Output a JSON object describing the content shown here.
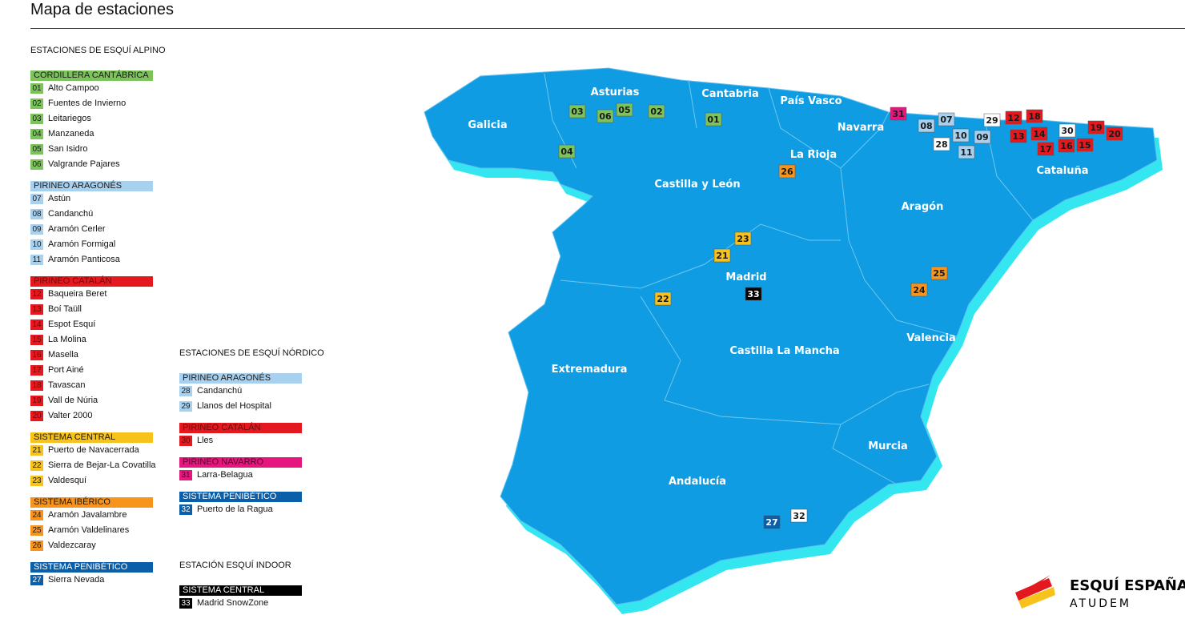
{
  "title": "Mapa de estaciones",
  "legends": [
    {
      "heading": "ESTACIONES DE ESQUÍ ALPINO",
      "groups": [
        {
          "name": "CORDILLERA CANTÁBRICA",
          "color": "#7dc35b",
          "text": "#1a1a1a",
          "items": [
            {
              "num": "01",
              "name": "Alto Campoo"
            },
            {
              "num": "02",
              "name": "Fuentes de Invierno"
            },
            {
              "num": "03",
              "name": "Leitariegos"
            },
            {
              "num": "04",
              "name": "Manzaneda"
            },
            {
              "num": "05",
              "name": "San Isidro"
            },
            {
              "num": "06",
              "name": "Valgrande Pajares"
            }
          ]
        },
        {
          "name": "PIRINEO ARAGONÉS",
          "color": "#a8d0ef",
          "text": "#1a1a1a",
          "items": [
            {
              "num": "07",
              "name": "Astún"
            },
            {
              "num": "08",
              "name": "Candanchú"
            },
            {
              "num": "09",
              "name": "Aramón Cerler"
            },
            {
              "num": "10",
              "name": "Aramón Formigal"
            },
            {
              "num": "11",
              "name": "Aramón Panticosa"
            }
          ]
        },
        {
          "name": "PIRINEO CATALÁN",
          "color": "#e3191f",
          "text": "#6a0a0a",
          "items": [
            {
              "num": "12",
              "name": "Baqueira Beret"
            },
            {
              "num": "13",
              "name": "Boí Taüll"
            },
            {
              "num": "14",
              "name": "Espot Esquí"
            },
            {
              "num": "15",
              "name": "La Molina"
            },
            {
              "num": "16",
              "name": "Masella"
            },
            {
              "num": "17",
              "name": "Port Ainé"
            },
            {
              "num": "18",
              "name": "Tavascan"
            },
            {
              "num": "19",
              "name": "Vall de Núria"
            },
            {
              "num": "20",
              "name": "Valter 2000"
            }
          ]
        },
        {
          "name": "SISTEMA CENTRAL",
          "color": "#f6c21b",
          "text": "#1a1a1a",
          "items": [
            {
              "num": "21",
              "name": "Puerto de Navacerrada"
            },
            {
              "num": "22",
              "name": "Sierra de Bejar-La Covatilla"
            },
            {
              "num": "23",
              "name": "Valdesquí"
            }
          ]
        },
        {
          "name": "SISTEMA IBÉRICO",
          "color": "#f7941d",
          "text": "#1a1a1a",
          "items": [
            {
              "num": "24",
              "name": "Aramón Javalambre"
            },
            {
              "num": "25",
              "name": "Aramón Valdelinares"
            },
            {
              "num": "26",
              "name": "Valdezcaray"
            }
          ]
        },
        {
          "name": "SISTEMA PENIBÉTICO",
          "color": "#0b5ea8",
          "text": "#ffffff",
          "items": [
            {
              "num": "27",
              "name": "Sierra Nevada"
            }
          ]
        }
      ]
    },
    {
      "heading": "ESTACIONES DE ESQUÍ NÓRDICO",
      "groups": [
        {
          "name": "PIRINEO ARAGONÉS",
          "color": "#a8d0ef",
          "text": "#1a1a1a",
          "items": [
            {
              "num": "28",
              "name": "Candanchú"
            },
            {
              "num": "29",
              "name": "Llanos del Hospital"
            }
          ]
        },
        {
          "name": "PIRINEO CATALÁN",
          "color": "#e3191f",
          "text": "#6a0a0a",
          "items": [
            {
              "num": "30",
              "name": "Lles"
            }
          ]
        },
        {
          "name": "PIRINEO NAVARRO",
          "color": "#e5177e",
          "text": "#4a0528",
          "items": [
            {
              "num": "31",
              "name": "Larra-Belagua"
            }
          ]
        },
        {
          "name": "SISTEMA PENIBÉTICO",
          "color": "#0b5ea8",
          "text": "#ffffff",
          "items": [
            {
              "num": "32",
              "name": "Puerto de la Ragua"
            }
          ]
        }
      ]
    },
    {
      "heading": "ESTACIÓN ESQUÍ INDOOR",
      "groups": [
        {
          "name": "SISTEMA CENTRAL",
          "color": "#000000",
          "text": "#ffffff",
          "items": [
            {
              "num": "33",
              "name": "Madrid SnowZone"
            }
          ]
        }
      ]
    }
  ],
  "map": {
    "regions": [
      "Galicia",
      "Asturias",
      "Cantabria",
      "País Vasco",
      "Navarra",
      "La Rioja",
      "Castilla y León",
      "Aragón",
      "Cataluña",
      "Madrid",
      "Valencia",
      "Extremadura",
      "Castilla La Mancha",
      "Murcia",
      "Andalucía"
    ],
    "markers": [
      {
        "num": "01",
        "color": "#7dc35b",
        "text": "#1a1a1a"
      },
      {
        "num": "02",
        "color": "#7dc35b",
        "text": "#1a1a1a"
      },
      {
        "num": "03",
        "color": "#7dc35b",
        "text": "#1a1a1a"
      },
      {
        "num": "04",
        "color": "#7dc35b",
        "text": "#1a1a1a"
      },
      {
        "num": "05",
        "color": "#7dc35b",
        "text": "#1a1a1a"
      },
      {
        "num": "06",
        "color": "#7dc35b",
        "text": "#1a1a1a"
      },
      {
        "num": "07",
        "color": "#a8d0ef",
        "text": "#1a1a1a"
      },
      {
        "num": "08",
        "color": "#a8d0ef",
        "text": "#1a1a1a"
      },
      {
        "num": "09",
        "color": "#a8d0ef",
        "text": "#1a1a1a"
      },
      {
        "num": "10",
        "color": "#a8d0ef",
        "text": "#1a1a1a"
      },
      {
        "num": "11",
        "color": "#a8d0ef",
        "text": "#1a1a1a"
      },
      {
        "num": "12",
        "color": "#e3191f",
        "text": "#1a1a1a"
      },
      {
        "num": "13",
        "color": "#e3191f",
        "text": "#1a1a1a"
      },
      {
        "num": "14",
        "color": "#e3191f",
        "text": "#1a1a1a"
      },
      {
        "num": "15",
        "color": "#e3191f",
        "text": "#1a1a1a"
      },
      {
        "num": "16",
        "color": "#e3191f",
        "text": "#1a1a1a"
      },
      {
        "num": "17",
        "color": "#e3191f",
        "text": "#1a1a1a"
      },
      {
        "num": "18",
        "color": "#e3191f",
        "text": "#1a1a1a"
      },
      {
        "num": "19",
        "color": "#e3191f",
        "text": "#1a1a1a"
      },
      {
        "num": "20",
        "color": "#e3191f",
        "text": "#1a1a1a"
      },
      {
        "num": "21",
        "color": "#f6c21b",
        "text": "#1a1a1a"
      },
      {
        "num": "22",
        "color": "#f6c21b",
        "text": "#1a1a1a"
      },
      {
        "num": "23",
        "color": "#f6c21b",
        "text": "#1a1a1a"
      },
      {
        "num": "24",
        "color": "#f7941d",
        "text": "#1a1a1a"
      },
      {
        "num": "25",
        "color": "#f7941d",
        "text": "#1a1a1a"
      },
      {
        "num": "26",
        "color": "#f7941d",
        "text": "#1a1a1a"
      },
      {
        "num": "27",
        "color": "#0b5ea8",
        "text": "#ffffff"
      },
      {
        "num": "28",
        "color": "#ffffff",
        "text": "#1a1a1a"
      },
      {
        "num": "29",
        "color": "#ffffff",
        "text": "#1a1a1a"
      },
      {
        "num": "30",
        "color": "#ffffff",
        "text": "#1a1a1a"
      },
      {
        "num": "31",
        "color": "#e5177e",
        "text": "#1a1a1a"
      },
      {
        "num": "32",
        "color": "#ffffff",
        "text": "#1a1a1a"
      },
      {
        "num": "33",
        "color": "#000000",
        "text": "#ffffff"
      }
    ]
  },
  "logo": {
    "name": "ESQUÍ ESPAÑA",
    "sub": "ATUDEM"
  }
}
